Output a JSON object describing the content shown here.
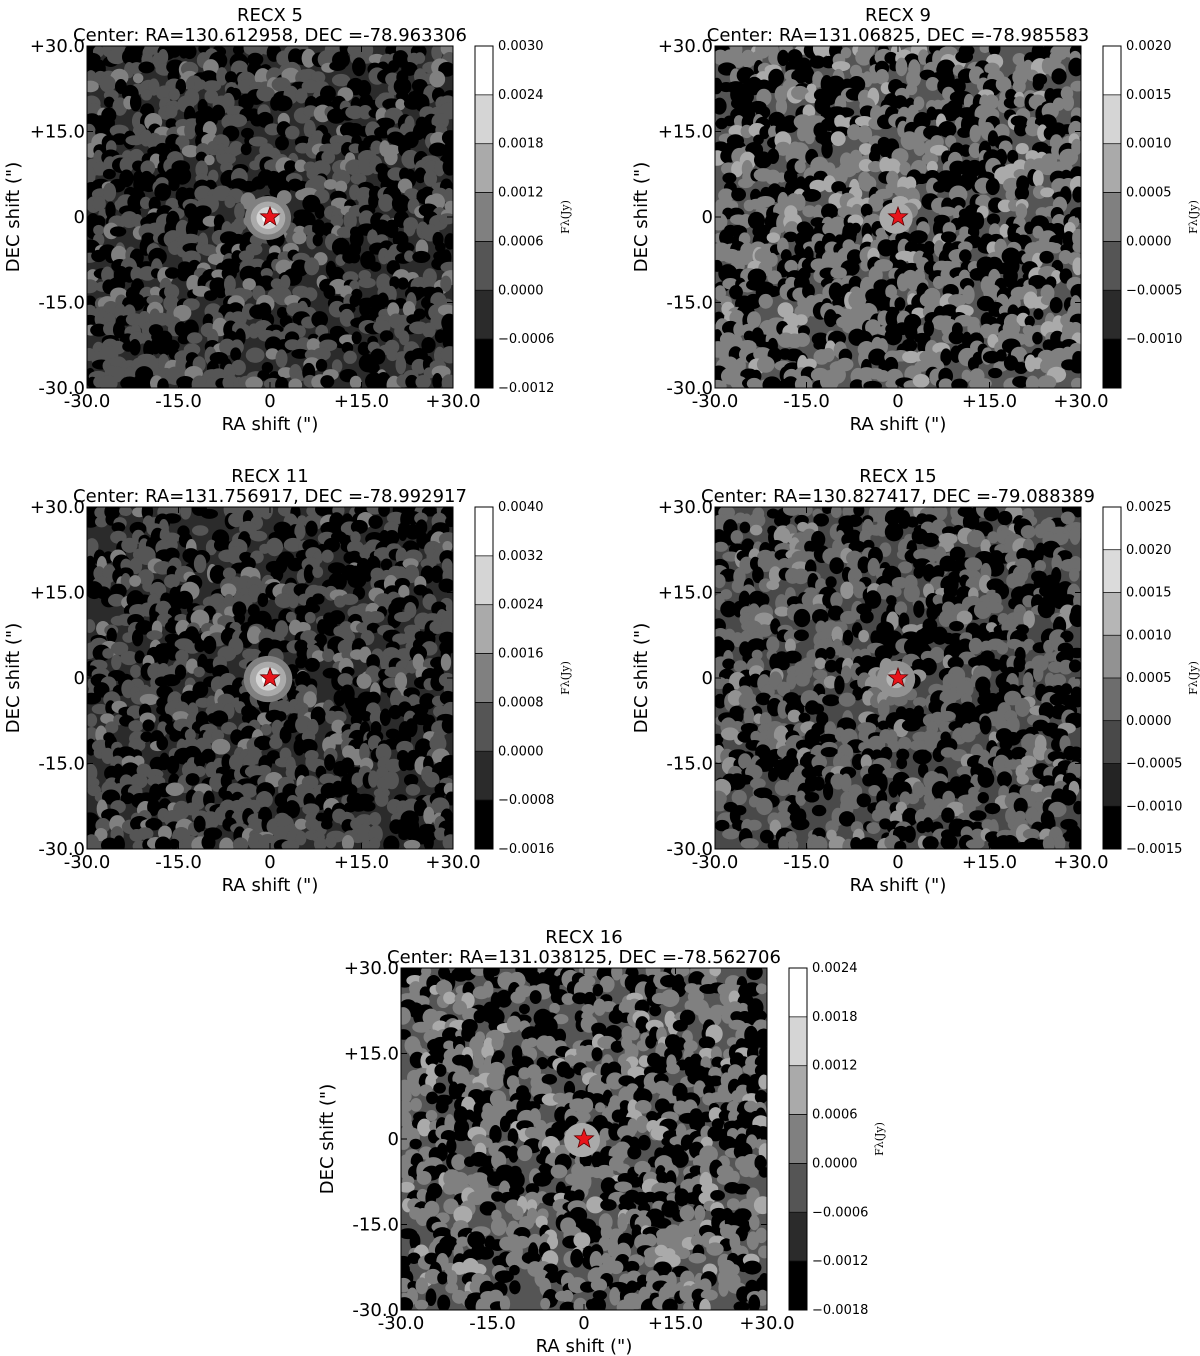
{
  "chart_data": [
    {
      "type": "heatmap",
      "title": "RECX 5",
      "subtitle": "Center: RA=130.612958, DEC =-78.963306",
      "xlabel": "RA shift (\")",
      "ylabel": "DEC shift (\")",
      "xlim": [
        -30,
        30
      ],
      "ylim": [
        -30,
        30
      ],
      "x_ticks": [
        "-30.0",
        "-15.0",
        "0",
        "+15.0",
        "+30.0"
      ],
      "y_ticks": [
        "-30.0",
        "-15.0",
        "0",
        "+15.0",
        "+30.0"
      ],
      "colorbar_label": "Fλ(Jy)",
      "colorbar_levels": [
        -0.0012,
        -0.0006,
        0.0,
        0.0006,
        0.0012,
        0.0018,
        0.0024,
        0.003
      ],
      "colorbar_ticks": [
        "−0.0012",
        "−0.0006",
        "0.0000",
        "0.0006",
        "0.0012",
        "0.0018",
        "0.0024",
        "0.0030"
      ],
      "source": {
        "x": 0,
        "y": 0,
        "marker": "star",
        "color": "#e8141b"
      },
      "peak_radius_arcsec": 3.6,
      "peak_level": 0.0028
    },
    {
      "type": "heatmap",
      "title": "RECX 9",
      "subtitle": "Center: RA=131.06825, DEC =-78.985583",
      "xlabel": "RA shift (\")",
      "ylabel": "DEC shift (\")",
      "xlim": [
        -30,
        30
      ],
      "ylim": [
        -30,
        30
      ],
      "x_ticks": [
        "-30.0",
        "-15.0",
        "0",
        "+15.0",
        "+30.0"
      ],
      "y_ticks": [
        "-30.0",
        "-15.0",
        "0",
        "+15.0",
        "+30.0"
      ],
      "colorbar_label": "Fλ(Jy)",
      "colorbar_levels": [
        -0.0015,
        -0.001,
        -0.0005,
        0.0,
        0.0005,
        0.001,
        0.0015,
        0.002
      ],
      "colorbar_ticks": [
        "",
        "−0.0010",
        "−0.0005",
        "0.0000",
        "0.0005",
        "0.0010",
        "0.0015",
        "0.0020"
      ],
      "source": {
        "x": 0,
        "y": 0,
        "marker": "star",
        "color": "#e8141b"
      },
      "peak_radius_arcsec": 2.6,
      "peak_level": 0.0009
    },
    {
      "type": "heatmap",
      "title": "RECX 11",
      "subtitle": "Center: RA=131.756917, DEC =-78.992917",
      "xlabel": "RA shift (\")",
      "ylabel": "DEC shift (\")",
      "xlim": [
        -30,
        30
      ],
      "ylim": [
        -30,
        30
      ],
      "x_ticks": [
        "-30.0",
        "-15.0",
        "0",
        "+15.0",
        "+30.0"
      ],
      "y_ticks": [
        "-30.0",
        "-15.0",
        "0",
        "+15.0",
        "+30.0"
      ],
      "colorbar_label": "Fλ(Jy)",
      "colorbar_levels": [
        -0.0016,
        -0.0008,
        0.0,
        0.0008,
        0.0016,
        0.0024,
        0.0032,
        0.004
      ],
      "colorbar_ticks": [
        "−0.0016",
        "−0.0008",
        "0.0000",
        "0.0008",
        "0.0016",
        "0.0024",
        "0.0032",
        "0.0040"
      ],
      "source": {
        "x": 0,
        "y": 0,
        "marker": "star",
        "color": "#e8141b"
      },
      "peak_radius_arcsec": 3.8,
      "peak_level": 0.0038
    },
    {
      "type": "heatmap",
      "title": "RECX 15",
      "subtitle": "Center: RA=130.827417, DEC =-79.088389",
      "xlabel": "RA shift (\")",
      "ylabel": "DEC shift (\")",
      "xlim": [
        -30,
        30
      ],
      "ylim": [
        -30,
        30
      ],
      "x_ticks": [
        "-30.0",
        "-15.0",
        "0",
        "+15.0",
        "+30.0"
      ],
      "y_ticks": [
        "-30.0",
        "-15.0",
        "0",
        "+15.0",
        "+30.0"
      ],
      "colorbar_label": "Fλ(Jy)",
      "colorbar_levels": [
        -0.0015,
        -0.001,
        -0.0005,
        0.0,
        0.0005,
        0.001,
        0.0015,
        0.002,
        0.0025
      ],
      "colorbar_ticks": [
        "−0.0015",
        "−0.0010",
        "−0.0005",
        "0.0000",
        "0.0005",
        "0.0010",
        "0.0015",
        "0.0020",
        "0.0025"
      ],
      "source": {
        "x": 0,
        "y": 0,
        "marker": "star",
        "color": "#e8141b"
      },
      "peak_radius_arcsec": 3.0,
      "peak_level": 0.0013
    },
    {
      "type": "heatmap",
      "title": "RECX 16",
      "subtitle": "Center: RA=131.038125, DEC =-78.562706",
      "xlabel": "RA shift (\")",
      "ylabel": "DEC shift (\")",
      "xlim": [
        -30,
        30
      ],
      "ylim": [
        -30,
        30
      ],
      "x_ticks": [
        "-30.0",
        "-15.0",
        "0",
        "+15.0",
        "+30.0"
      ],
      "y_ticks": [
        "-30.0",
        "-15.0",
        "0",
        "+15.0",
        "+30.0"
      ],
      "colorbar_label": "Fλ(Jy)",
      "colorbar_levels": [
        -0.0018,
        -0.0012,
        -0.0006,
        0.0,
        0.0006,
        0.0012,
        0.0018,
        0.0024
      ],
      "colorbar_ticks": [
        "−0.0018",
        "−0.0012",
        "−0.0006",
        "0.0000",
        "0.0006",
        "0.0012",
        "0.0018",
        "0.0024"
      ],
      "source": {
        "x": 0,
        "y": 0,
        "marker": "star",
        "color": "#e8141b"
      },
      "peak_radius_arcsec": 2.8,
      "peak_level": 0.0008
    }
  ]
}
